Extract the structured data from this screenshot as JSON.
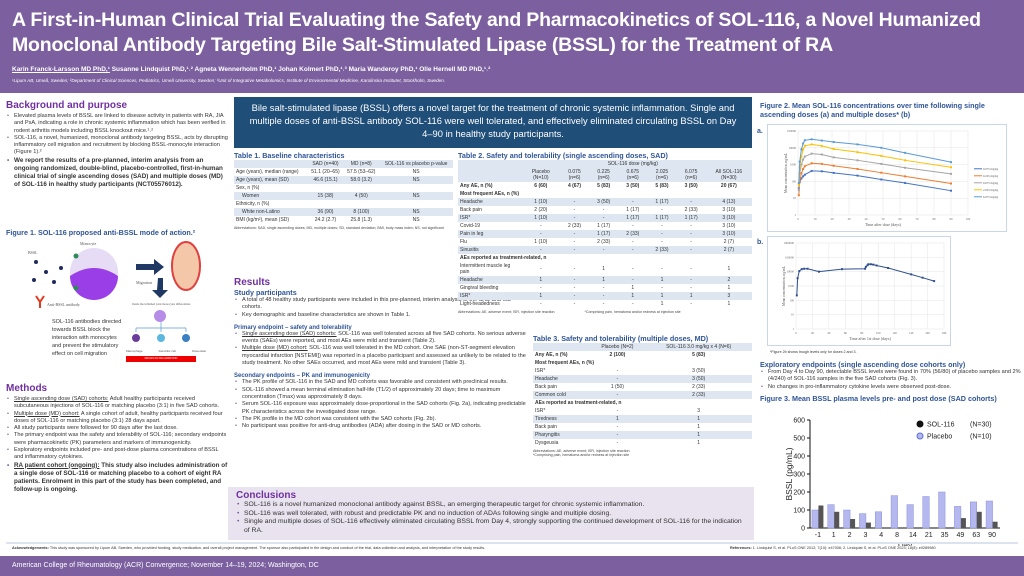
{
  "header": {
    "title": "A First-in-Human Clinical Trial Evaluating the Safety and Pharmacokinetics of SOL-116, a Novel Humanized Monoclonal Antibody Targeting Bile Salt-Stimulated Lipase (BSSL) for the Treatment of RA",
    "authors": [
      "Karin Franck-Larsson MD PhD,¹",
      "Susanne Lindquist PhD,¹˒²",
      "Agneta Wennerholm PhD,¹",
      "Johan Kolmert PhD,¹˒³",
      "Maria Wanderoy PhD,¹",
      "Olle Hernell MD PhD,¹˒²"
    ],
    "affiliations": "¹Lipum AB, Umeå, Sweden; ²Department of Clinical Sciences, Pediatrics, Umeå University, Sweden; ³Unit of Integrative Metabolomics, Institute of Environmental Medicine, Karolinska Institutet, Stockholm, Sweden."
  },
  "background": {
    "heading": "Background and purpose",
    "bullets": [
      "Elevated plasma levels of BSSL are linked to disease activity in patients with RA, JIA and PsA, indicating a role in chronic systemic inflammation which has been verified in rodent arthritis models including BSSL knockout mice.¹˒²",
      "SOL-116, a novel, humanized, monoclonal antibody targeting BSSL, acts by disrupting inflammatory cell migration and recruitment by blocking BSSL-monocyte interaction (Figure 1).²",
      "We report the results of a pre-planned, interim analysis from an ongoing randomized, double-blind, placebo-controlled, first-in-human clinical trial of single ascending doses (SAD) and multiple doses (MD) of SOL-116 in healthy study participants (NCT05576012)."
    ]
  },
  "figure1": {
    "title": "Figure 1. SOL-116 proposed anti-BSSL mode of action.²",
    "labels": {
      "monocyte": "Monocyte",
      "bssl": "BSSL",
      "migration": "Migration",
      "antibody": "Anti-BSSL antibody",
      "differentiate": "Inside the inflamed joint monocytes differentiate",
      "macrophage": "Macrophage",
      "dendritic": "Dendritic cell",
      "osteoclast": "Osteoclast",
      "red_bar": "DRIVES RA INFLAMMATION",
      "caption": "SOL-116 antibodies directed towards BSSL block the interaction with monocytes and prevent the stimulatory effect on cell migration"
    }
  },
  "methods": {
    "heading": "Methods",
    "bullets": [
      {
        "lead": "Single ascending dose (SAD) cohorts:",
        "text": " Adult healthy participants received subcutaneous injections of SOL-116 or matching placebo (3:1) in five SAD cohorts."
      },
      {
        "lead": "Multiple dose (MD) cohort:",
        "text": " A single cohort of adult, healthy participants received four doses of SOL-116 or matching placebo (3:1) 28 days apart."
      },
      {
        "lead": "",
        "text": "All study participants were followed for 90 days after the last dose."
      },
      {
        "lead": "",
        "text": "The primary endpoint was the safety and tolerability of SOL-116; secondary endpoints were pharmacokinetic (PK) parameters and markers of immunogenicity."
      },
      {
        "lead": "",
        "text": "Exploratory endpoints included pre- and post-dose plasma concentrations of BSSL and inflammatory cytokines."
      },
      {
        "lead": "RA patient cohort (ongoing):",
        "text": " This study also includes administration of a single dose of SOL-116 or matching placebo to a cohort of eight RA patients. Enrolment in this part of the study has been completed, and follow-up is ongoing."
      }
    ]
  },
  "key_message": "Bile salt-stimulated lipase (BSSL) offers a novel target for the treatment of chronic systemic inflammation. Single and multiple doses of anti-BSSL antibody SOL-116 were well tolerated, and effectively eliminated circulating BSSL on Day 4–90 in healthy study participants.",
  "table1": {
    "title": "Table 1. Baseline characteristics",
    "columns": [
      "",
      "SAD (n=40)",
      "MD (n=8)",
      "SOL-116 vs placebo p-value"
    ],
    "rows": [
      [
        "Age (years), median (range)",
        "51.1 (20–65)",
        "57.5 (53–62)",
        "NS"
      ],
      [
        "Age (years), mean (SD)",
        "46.6 (15.1)",
        "58.0 (3.2)",
        "NS"
      ],
      [
        "Sex, n (%)",
        "",
        "",
        ""
      ],
      [
        "Women",
        "15 (38)",
        "4 (50)",
        "NS"
      ],
      [
        "Ethnicity, n (%)",
        "",
        "",
        ""
      ],
      [
        "White non-Latino",
        "36 (90)",
        "8 (100)",
        "NS"
      ],
      [
        "BMI (kg/m²), mean (SD)",
        "24.2 (2.7)",
        "25.8 (1.3)",
        "NS"
      ]
    ],
    "abbr": "Abbreviations: SAD, single ascending doses; MD, multiple doses; SD, standard deviation; BMI, body mass index; NS, not significant"
  },
  "table2": {
    "title": "Table 2. Safety and tolerability (single ascending doses, SAD)",
    "group_header": "SOL-116 dose (mg/kg)",
    "columns": [
      "",
      "Placebo (N=10)",
      "0.075 (n=6)",
      "0.225 (n=6)",
      "0.675 (n=6)",
      "2.025 (n=6)",
      "6.075 (n=6)",
      "All SOL-116 (N=30)"
    ],
    "any_ae": [
      "Any AE, n (%)",
      "6 (60)",
      "4 (67)",
      "5 (83)",
      "3 (50)",
      "5 (83)",
      "3 (50)",
      "20 (67)"
    ],
    "section1": "Most frequent AEs, n (%)",
    "frequent": [
      [
        "Headache",
        "1 (10)",
        "-",
        "3 (50)",
        "-",
        "1 (17)",
        "-",
        "4 (13)"
      ],
      [
        "Back pain",
        "2 (20)",
        "-",
        "-",
        "1 (17)",
        "-",
        "2 (33)",
        "3 (10)"
      ],
      [
        "ISR*",
        "1 (10)",
        "-",
        "-",
        "1 (17)",
        "1 (17)",
        "1 (17)",
        "3 (10)"
      ],
      [
        "Covid-19",
        "-",
        "2 (33)",
        "1 (17)",
        "-",
        "-",
        "-",
        "3 (10)"
      ],
      [
        "Pain in leg",
        "-",
        "-",
        "1 (17)",
        "2 (33)",
        "-",
        "-",
        "3 (10)"
      ],
      [
        "Flu",
        "1 (10)",
        "-",
        "2 (33)",
        "-",
        "-",
        "-",
        "2 (7)"
      ],
      [
        "Sinusitis",
        "-",
        "-",
        "-",
        "-",
        "2 (33)",
        "-",
        "2 (7)"
      ]
    ],
    "section2": "AEs reported as treatment-related, n",
    "related": [
      [
        "Intermittent muscle leg pain",
        "-",
        "-",
        "1",
        "-",
        "-",
        "-",
        "1"
      ],
      [
        "Headache",
        "1",
        "-",
        "1",
        "-",
        "1",
        "-",
        "2"
      ],
      [
        "Gingival bleeding",
        "-",
        "-",
        "-",
        "1",
        "-",
        "-",
        "1"
      ],
      [
        "ISR*",
        "1",
        "-",
        "-",
        "1",
        "1",
        "1",
        "3"
      ],
      [
        "Light-headedness",
        "-",
        "-",
        "-",
        "-",
        "1",
        "-",
        "1"
      ]
    ],
    "abbr": "Abbreviations: AE, adverse event; ISR, injection site reaction",
    "footnote": "*Comprising pain, hematoma and/or redness at injection site"
  },
  "results": {
    "heading": "Results",
    "participants_heading": "Study participants",
    "participants": [
      "A total of 48 healthy study participants were included in this pre-planned, interim analysis of the SAD and MD cohorts.",
      "Key demographic and baseline characteristics are shown in Table 1."
    ],
    "primary_heading": "Primary endpoint – safety and tolerability",
    "primary": [
      {
        "lead": "Single ascending dose (SAD) cohorts:",
        "text": " SOL-116 was well tolerated across all five SAD cohorts. No serious adverse events (SAEs) were reported, and most AEs were mild and transient (Table 2)."
      },
      {
        "lead": "Multiple dose (MD) cohort:",
        "text": " SOL-116 was well tolerated in the MD cohort. One SAE (non-ST-segment elevation myocardial infarction [NSTEMI]) was reported in a placebo participant and assessed as unlikely to be related to the study treatment. No other SAEs occurred, and most AEs were mild and transient (Table 3)."
      }
    ],
    "secondary_heading": "Secondary endpoints – PK and immunogenicity",
    "secondary": [
      "The PK profile of SOL-116 in the SAD and MD cohorts was favorable and consistent with preclinical results.",
      "SOL-116 showed a mean terminal elimination half-life (T1/2) of approximately 20 days; time to maximum concentration (Tmax) was approximately 8 days.",
      "Serum SOL-116 exposure was approximately dose-proportional in the SAD cohorts (Fig. 2a), indicating predictable PK characteristics across the investigated dose range.",
      "The PK profile in the MD cohort was consistent with the SAD cohorts (Fig. 2b).",
      "No participant was positive for anti-drug antibodies (ADA) after dosing in the SAD or MD cohorts."
    ]
  },
  "table3": {
    "title": "Table 3. Safety and tolerability (multiple doses, MD)",
    "columns": [
      "",
      "Placebo (N=2)",
      "SOL-116 3.0 mg/kg x 4 (N=6)"
    ],
    "any_ae": [
      "Any AE, n (%)",
      "2 (100)",
      "5 (83)"
    ],
    "section1": "Most frequent AEs, n (%)",
    "frequent": [
      [
        "ISR*",
        "-",
        "3 (50)"
      ],
      [
        "Headache",
        "-",
        "3 (50)"
      ],
      [
        "Back pain",
        "1 (50)",
        "2 (33)"
      ],
      [
        "Common cold",
        "-",
        "2 (33)"
      ]
    ],
    "section2": "AEs reported as treatment-related, n",
    "related": [
      [
        "ISR*",
        "-",
        "3"
      ],
      [
        "Tiredness",
        "1",
        "1"
      ],
      [
        "Back pain",
        "-",
        "1"
      ],
      [
        "Pharyngitis",
        "-",
        "1"
      ],
      [
        "Dysgeusia",
        "-",
        "1"
      ]
    ],
    "abbr": "Abbreviations: AE, adverse event; ISR, injection site reaction",
    "footnote": "*Comprising pain, hematoma and/or redness at injection site"
  },
  "conclusions": {
    "heading": "Conclusions",
    "bullets": [
      "SOL-116 is a novel humanized monoclonal antibody against BSSL, an emerging therapeutic target for chronic systemic inflammation.",
      "SOL-116 was well tolerated, with robust and predictable PK and no induction of ADAs following single and multiple dosing.",
      "Single and multiple doses of SOL-116 effectively eliminated circulating BSSL from Day 4, strongly supporting the continued development of SOL-116 for the indication of RA."
    ]
  },
  "figure2": {
    "title": "Figure 2. Mean SOL-116 concentrations over time following single ascending doses (a) and multiple doses* (b)",
    "panel_a": "a.",
    "panel_b": "b.",
    "footnote": "*Figure 2b shows trough levels only for doses 2 and 3."
  },
  "exploratory": {
    "heading": "Exploratory endpoints (single ascending dose cohorts only)",
    "bullets": [
      "From Day 4 to Day 90, detectable BSSL levels were found in 70% (56/80) of placebo samples and 2% (4/240) of SOL-116 samples in the five SAD cohorts (Fig. 3).",
      "No changes in pro-inflammatory cytokine levels were observed post-dose."
    ]
  },
  "figure3": {
    "title": "Figure 3. Mean BSSL plasma levels pre- and post dose (SAD cohorts)"
  },
  "chart_data": [
    {
      "id": "fig2a",
      "type": "line",
      "xlabel": "Time after dose (days)",
      "ylabel": "Mean concentration, ng/mL",
      "xlim": [
        0,
        100
      ],
      "ylim": [
        1,
        100000
      ],
      "yscale": "log",
      "grid": true,
      "legend": "right",
      "xticks": [
        0,
        10,
        20,
        30,
        40,
        50,
        60,
        70,
        80,
        90,
        100
      ],
      "yticks": [
        "1",
        "10",
        "100",
        "1000",
        "10000",
        "100000"
      ],
      "x": [
        0.5,
        1,
        2,
        3,
        4,
        8,
        14,
        21,
        35,
        49,
        63,
        90
      ],
      "series": [
        {
          "name": "0.075 mg/kg",
          "color": "#4472c4",
          "values": [
            40,
            90,
            150,
            200,
            250,
            420,
            400,
            320,
            220,
            130,
            80,
            28
          ]
        },
        {
          "name": "0.225 mg/kg",
          "color": "#ed7d31",
          "values": [
            15,
            100,
            300,
            550,
            800,
            1200,
            1100,
            850,
            550,
            330,
            200,
            75
          ]
        },
        {
          "name": "0.675 mg/kg",
          "color": "#a5a5a5",
          "values": [
            30,
            300,
            1000,
            2000,
            3000,
            4500,
            4000,
            2700,
            1800,
            1100,
            650,
            280
          ]
        },
        {
          "name": "2.025 mg/kg",
          "color": "#ffc000",
          "values": [
            60,
            700,
            3000,
            8000,
            13000,
            16000,
            13000,
            8500,
            5500,
            3300,
            1800,
            700
          ]
        },
        {
          "name": "6.075 mg/kg",
          "color": "#5b9bd5",
          "values": [
            80,
            1500,
            8000,
            18000,
            28000,
            32000,
            27000,
            22000,
            16000,
            10000,
            5000,
            1400
          ]
        }
      ]
    },
    {
      "id": "fig2b",
      "type": "line",
      "xlabel": "Time after 1st dose (days)",
      "ylabel": "Mean concentration, ng/mL",
      "xlim": [
        0,
        180
      ],
      "ylim": [
        1,
        1000000
      ],
      "yscale": "log",
      "grid": true,
      "xticks": [
        0,
        20,
        40,
        60,
        80,
        100,
        120,
        140,
        160,
        180
      ],
      "yticks": [
        "1",
        "10",
        "100",
        "1000",
        "10000",
        "100000",
        "1000000"
      ],
      "x": [
        1,
        2,
        4,
        7,
        10,
        14,
        28,
        56,
        84,
        85,
        87,
        88,
        91,
        94,
        98,
        112,
        140,
        154,
        168
      ],
      "series": [
        {
          "color": "#2f4f8f",
          "values": [
            220,
            3500,
            11000,
            15000,
            16000,
            16000,
            10000,
            15000,
            16000,
            22000,
            28000,
            33000,
            33000,
            31000,
            27000,
            18000,
            6500,
            3800,
            2200
          ]
        }
      ]
    },
    {
      "id": "fig3",
      "type": "bar",
      "xlabel": "Day",
      "ylabel": "BSSL (pg/mL)",
      "ylim": [
        0,
        600
      ],
      "yticks": [
        0,
        100,
        200,
        300,
        400,
        500,
        600
      ],
      "legend": "top-right",
      "categories": [
        "-1",
        "1",
        "2",
        "3",
        "4",
        "8",
        "14",
        "21",
        "35",
        "49",
        "63",
        "90"
      ],
      "series": [
        {
          "name": "SOL-116",
          "n_label": "(N=30)",
          "color": "#3a3a3a",
          "values": [
            125,
            90,
            50,
            30,
            0,
            0,
            0,
            0,
            0,
            55,
            90,
            35
          ]
        },
        {
          "name": "Placebo",
          "n_label": "(N=10)",
          "color": "#b4b8ee",
          "values": [
            100,
            130,
            100,
            80,
            90,
            180,
            130,
            175,
            200,
            120,
            145,
            150
          ]
        }
      ]
    }
  ],
  "acknowledgements": {
    "label": "Acknowledgements:",
    "text": " This study was sponsored by Lipum AB, Sweden, who provided funding, study medication, and overall project management. The sponsor also participated in the design and conduct of the trial, data collection and analysis, and interpretation of the study results."
  },
  "references": {
    "label": "References:",
    "text": " 1. Lindquist S, et al. PLoS ONE 2012; 7(10): e47006; 2. Lindquist S, et al. PLoS ONE 2023; 18(8): e0289980"
  },
  "footer": "American College of Rheumatology (ACR) Convergence; November 14–19, 2024; Washington, DC",
  "colors": {
    "header": "#7b5f9f",
    "key_box": "#1f4e79",
    "heading_purple": "#7030a0",
    "heading_blue": "#2f5597",
    "conclusion_bg": "#e8e3ef"
  }
}
